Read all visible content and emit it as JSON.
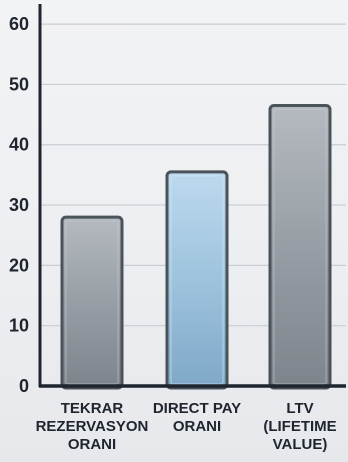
{
  "chart_data": {
    "type": "bar",
    "categories": [
      [
        "TEKRAR",
        "REZERVASYON",
        "ORANI"
      ],
      [
        "DIRECT PAY",
        "ORANI"
      ],
      [
        "LTV",
        "(LIFETIME",
        "VALUE)"
      ]
    ],
    "values": [
      28,
      35.5,
      46.5
    ],
    "ylim": [
      0,
      63
    ],
    "yticks": [
      0,
      10,
      20,
      30,
      40,
      50,
      60
    ],
    "grid": true,
    "title": "",
    "xlabel": "",
    "ylabel": "",
    "colors": {
      "default_bar": "#8f969d",
      "highlight_bar": "#9fc4de",
      "bar_border": "#4a525a",
      "axis": "#1e252e",
      "grid": "#c9ced4"
    },
    "highlight_index": 1
  }
}
